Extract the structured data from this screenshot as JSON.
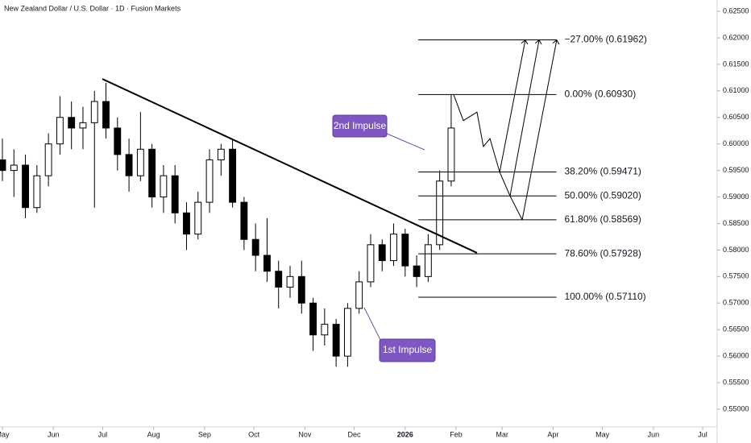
{
  "chart_data": {
    "type": "candlestick",
    "title": "New Zealand Dollar / U.S. Dollar · 1D · Fusion Markets",
    "color": "#000000",
    "x": [
      0,
      7,
      14,
      21,
      28,
      35,
      42,
      49,
      56,
      63,
      70,
      77,
      84,
      91,
      98,
      105,
      112,
      119,
      126,
      133,
      140,
      147,
      154,
      161,
      168,
      175,
      182,
      189,
      196,
      203,
      210,
      217,
      224,
      231,
      238,
      245,
      252,
      259,
      266,
      273
    ],
    "open": [
      0.597,
      0.595,
      0.596,
      0.588,
      0.594,
      0.6,
      0.605,
      0.603,
      0.604,
      0.608,
      0.603,
      0.598,
      0.594,
      0.599,
      0.59,
      0.594,
      0.587,
      0.583,
      0.589,
      0.597,
      0.599,
      0.589,
      0.582,
      0.579,
      0.576,
      0.573,
      0.575,
      0.57,
      0.564,
      0.566,
      0.56,
      0.569,
      0.574,
      0.581,
      0.578,
      0.583,
      0.577,
      0.575,
      0.581,
      0.593
    ],
    "high": [
      0.601,
      0.599,
      0.598,
      0.596,
      0.602,
      0.609,
      0.608,
      0.607,
      0.61,
      0.6115,
      0.605,
      0.601,
      0.606,
      0.6,
      0.596,
      0.596,
      0.589,
      0.591,
      0.599,
      0.6,
      0.601,
      0.59,
      0.585,
      0.586,
      0.578,
      0.577,
      0.578,
      0.571,
      0.569,
      0.567,
      0.57,
      0.576,
      0.583,
      0.582,
      0.585,
      0.584,
      0.579,
      0.583,
      0.595,
      0.6093
    ],
    "low": [
      0.593,
      0.59,
      0.586,
      0.587,
      0.592,
      0.598,
      0.599,
      0.599,
      0.588,
      0.601,
      0.595,
      0.591,
      0.593,
      0.588,
      0.587,
      0.585,
      0.58,
      0.582,
      0.587,
      0.594,
      0.588,
      0.58,
      0.576,
      0.574,
      0.569,
      0.571,
      0.568,
      0.561,
      0.562,
      0.558,
      0.558,
      0.568,
      0.573,
      0.576,
      0.577,
      0.575,
      0.573,
      0.574,
      0.58,
      0.592
    ],
    "close": [
      0.595,
      0.596,
      0.588,
      0.594,
      0.6,
      0.605,
      0.603,
      0.604,
      0.608,
      0.603,
      0.598,
      0.594,
      0.599,
      0.59,
      0.594,
      0.587,
      0.583,
      0.589,
      0.597,
      0.599,
      0.589,
      0.582,
      0.579,
      0.576,
      0.573,
      0.575,
      0.57,
      0.564,
      0.566,
      0.56,
      0.569,
      0.574,
      0.581,
      0.578,
      0.583,
      0.577,
      0.575,
      0.581,
      0.593,
      0.603
    ],
    "xlim": [
      -1.47,
      434.8
    ],
    "ylim": [
      0.54666,
      0.62713
    ],
    "xticks": [
      {
        "value": 0,
        "label": "May"
      },
      {
        "value": 31,
        "label": "Jun"
      },
      {
        "value": 61,
        "label": "Jul"
      },
      {
        "value": 92,
        "label": "Aug"
      },
      {
        "value": 123,
        "label": "Sep"
      },
      {
        "value": 153,
        "label": "Oct"
      },
      {
        "value": 184,
        "label": "Nov"
      },
      {
        "value": 214,
        "label": "Dec"
      },
      {
        "value": 245,
        "label": "2026"
      },
      {
        "value": 276,
        "label": "Feb"
      },
      {
        "value": 304,
        "label": "Mar"
      },
      {
        "value": 335,
        "label": "Apr"
      },
      {
        "value": 365,
        "label": "May"
      },
      {
        "value": 396,
        "label": "Jun"
      },
      {
        "value": 426,
        "label": "Jul"
      }
    ],
    "yticks": [
      {
        "value": 0.625,
        "label": "0.62500"
      },
      {
        "value": 0.62,
        "label": "0.62000"
      },
      {
        "value": 0.615,
        "label": "0.61500"
      },
      {
        "value": 0.61,
        "label": "0.61000"
      },
      {
        "value": 0.605,
        "label": "0.60500"
      },
      {
        "value": 0.6,
        "label": "0.60000"
      },
      {
        "value": 0.595,
        "label": "0.59500"
      },
      {
        "value": 0.59,
        "label": "0.59000"
      },
      {
        "value": 0.585,
        "label": "0.58500"
      },
      {
        "value": 0.58,
        "label": "0.58000"
      },
      {
        "value": 0.575,
        "label": "0.57500"
      },
      {
        "value": 0.57,
        "label": "0.57000"
      },
      {
        "value": 0.565,
        "label": "0.56500"
      },
      {
        "value": 0.56,
        "label": "0.56000"
      },
      {
        "value": 0.555,
        "label": "0.55500"
      },
      {
        "value": 0.55,
        "label": "0.55000"
      }
    ],
    "trendline": {
      "x": [
        60.8,
        288.7
      ],
      "y": [
        0.61225,
        0.57946
      ]
    },
    "fib_x": [
      253,
      337
    ],
    "fib_levels": [
      {
        "label": "−27.00% (0.61962)",
        "value": 0.61962
      },
      {
        "label": "0.00% (0.60930)",
        "value": 0.6093
      },
      {
        "label": "38.20% (0.59471)",
        "value": 0.59471
      },
      {
        "label": "50.00% (0.59020)",
        "value": 0.5902
      },
      {
        "label": "61.80% (0.58569)",
        "value": 0.58569
      },
      {
        "label": "78.60% (0.57928)",
        "value": 0.57928
      },
      {
        "label": "100.00% (0.57110)",
        "value": 0.5711
      }
    ],
    "projection": {
      "x": [
        274.5,
        280.4,
        288.7,
        292.6,
        296.6,
        302.5,
        308.8,
        316.2
      ],
      "y": [
        0.6093,
        0.6044,
        0.606,
        0.5995,
        0.601,
        0.5947,
        0.5902,
        0.5857
      ]
    },
    "arrows": [
      {
        "x": [
          302.5,
          318.1
        ],
        "y": [
          0.5947,
          0.6196
        ]
      },
      {
        "x": [
          308.8,
          326.5
        ],
        "y": [
          0.5902,
          0.6196
        ]
      },
      {
        "x": [
          316.2,
          337.2
        ],
        "y": [
          0.5857,
          0.6196
        ]
      }
    ],
    "annotations": [
      "2nd Impulse",
      "1st Impulse"
    ]
  }
}
